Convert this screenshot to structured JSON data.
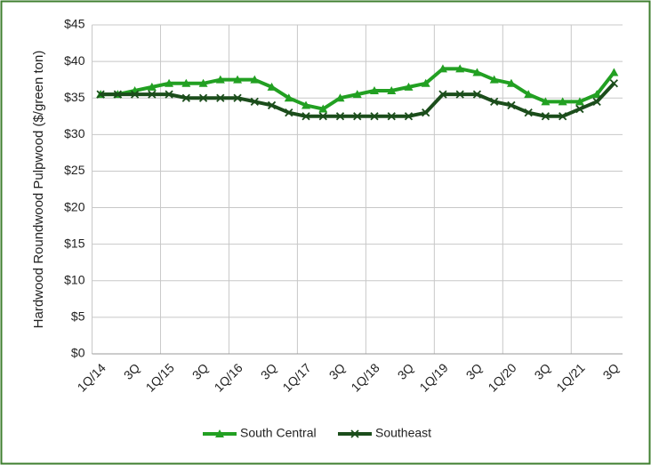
{
  "chart_data": {
    "type": "line",
    "y_label": "Hardwood Roundwood Pulpwood ($/green ton)",
    "categories": [
      "1Q/14",
      null,
      "3Q",
      null,
      "1Q/15",
      null,
      "3Q",
      null,
      "1Q/16",
      null,
      "3Q",
      null,
      "1Q/17",
      null,
      "3Q",
      null,
      "1Q/18",
      null,
      "3Q",
      null,
      "1Q/19",
      null,
      "3Q",
      null,
      "1Q/20",
      null,
      "3Q",
      null,
      "1Q/21",
      null,
      "3Q"
    ],
    "series": [
      {
        "name": "South Central",
        "color": "#22a022",
        "marker": "triangle",
        "values": [
          35.5,
          35.5,
          36,
          36.5,
          37,
          37,
          37,
          37.5,
          37.5,
          37.5,
          36.5,
          35,
          34,
          33.5,
          35,
          35.5,
          36,
          36,
          36.5,
          37,
          39,
          39,
          38.5,
          37.5,
          37,
          35.5,
          34.5,
          34.5,
          34.5,
          35.5,
          38.5
        ]
      },
      {
        "name": "Southeast",
        "color": "#1b4d1b",
        "marker": "x",
        "values": [
          35.5,
          35.5,
          35.5,
          35.5,
          35.5,
          35,
          35,
          35,
          35,
          34.5,
          34,
          33,
          32.5,
          32.5,
          32.5,
          32.5,
          32.5,
          32.5,
          32.5,
          33,
          35.5,
          35.5,
          35.5,
          34.5,
          34,
          33,
          32.5,
          32.5,
          33.5,
          34.5,
          37
        ]
      }
    ],
    "ylim": [
      0,
      45
    ],
    "yticks": [
      {
        "value": 0,
        "label": "$0"
      },
      {
        "value": 5,
        "label": "$5"
      },
      {
        "value": 10,
        "label": "$10"
      },
      {
        "value": 15,
        "label": "$15"
      },
      {
        "value": 20,
        "label": "$20"
      },
      {
        "value": 25,
        "label": "$25"
      },
      {
        "value": 30,
        "label": "$30"
      },
      {
        "value": 35,
        "label": "$35"
      },
      {
        "value": 40,
        "label": "$40"
      },
      {
        "value": 45,
        "label": "$45"
      }
    ],
    "grid": true,
    "legend": "bottom"
  }
}
